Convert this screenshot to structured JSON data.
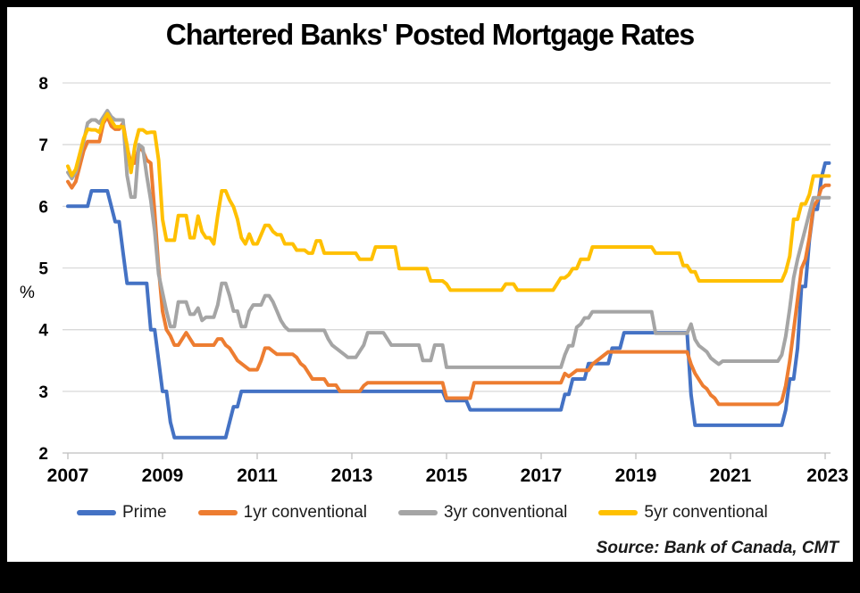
{
  "window_title": "Chartered Banks' Posted Mortgage Rates",
  "source_note": "Source: Bank of Canada, CMT",
  "chart_data": {
    "type": "line",
    "title": "Chartered Banks' Posted Mortgage Rates",
    "ylabel": "%",
    "frequency": "monthly",
    "x_start": "2007-01",
    "x_end": "2023-02",
    "x_tick_labels": [
      "2007",
      "2009",
      "2011",
      "2013",
      "2015",
      "2017",
      "2019",
      "2021",
      "2023"
    ],
    "x_tick_years": [
      2007,
      2009,
      2011,
      2013,
      2015,
      2017,
      2019,
      2021,
      2023
    ],
    "y_ticks": [
      2,
      3,
      4,
      5,
      6,
      7,
      8
    ],
    "ylim": [
      2,
      8
    ],
    "xlim_years": [
      2007,
      2023.25
    ],
    "grid": "horizontal",
    "legend_position": "bottom",
    "axis_color": "#bfbfbf",
    "grid_color": "#d9d9d9",
    "series": [
      {
        "name": "Prime",
        "color": "#4472C4",
        "values": [
          6,
          6,
          6,
          6,
          6,
          6,
          6.25,
          6.25,
          6.25,
          6.25,
          6.25,
          6,
          5.75,
          5.75,
          5.25,
          4.75,
          4.75,
          4.75,
          4.75,
          4.75,
          4.75,
          4,
          4,
          3.5,
          3,
          3,
          2.5,
          2.25,
          2.25,
          2.25,
          2.25,
          2.25,
          2.25,
          2.25,
          2.25,
          2.25,
          2.25,
          2.25,
          2.25,
          2.25,
          2.25,
          2.5,
          2.75,
          2.75,
          3,
          3,
          3,
          3,
          3,
          3,
          3,
          3,
          3,
          3,
          3,
          3,
          3,
          3,
          3,
          3,
          3,
          3,
          3,
          3,
          3,
          3,
          3,
          3,
          3,
          3,
          3,
          3,
          3,
          3,
          3,
          3,
          3,
          3,
          3,
          3,
          3,
          3,
          3,
          3,
          3,
          3,
          3,
          3,
          3,
          3,
          3,
          3,
          3,
          3,
          3,
          3,
          2.85,
          2.85,
          2.85,
          2.85,
          2.85,
          2.85,
          2.7,
          2.7,
          2.7,
          2.7,
          2.7,
          2.7,
          2.7,
          2.7,
          2.7,
          2.7,
          2.7,
          2.7,
          2.7,
          2.7,
          2.7,
          2.7,
          2.7,
          2.7,
          2.7,
          2.7,
          2.7,
          2.7,
          2.7,
          2.7,
          2.95,
          2.95,
          3.2,
          3.2,
          3.2,
          3.2,
          3.45,
          3.45,
          3.45,
          3.45,
          3.45,
          3.45,
          3.7,
          3.7,
          3.7,
          3.95,
          3.95,
          3.95,
          3.95,
          3.95,
          3.95,
          3.95,
          3.95,
          3.95,
          3.95,
          3.95,
          3.95,
          3.95,
          3.95,
          3.95,
          3.95,
          3.95,
          2.95,
          2.45,
          2.45,
          2.45,
          2.45,
          2.45,
          2.45,
          2.45,
          2.45,
          2.45,
          2.45,
          2.45,
          2.45,
          2.45,
          2.45,
          2.45,
          2.45,
          2.45,
          2.45,
          2.45,
          2.45,
          2.45,
          2.45,
          2.45,
          2.7,
          3.2,
          3.2,
          3.7,
          4.7,
          4.7,
          5.45,
          5.95,
          5.95,
          6.45,
          6.7,
          6.7
        ]
      },
      {
        "name": "1yr conventional",
        "color": "#ED7D31",
        "values": [
          6.4,
          6.3,
          6.4,
          6.65,
          6.9,
          7.05,
          7.05,
          7.05,
          7.05,
          7.35,
          7.45,
          7.3,
          7.25,
          7.25,
          7.35,
          6.95,
          6.7,
          6.7,
          6.95,
          6.9,
          6.75,
          6.7,
          5.9,
          5,
          4.3,
          4,
          3.9,
          3.75,
          3.75,
          3.85,
          3.95,
          3.85,
          3.75,
          3.75,
          3.75,
          3.75,
          3.75,
          3.75,
          3.85,
          3.85,
          3.75,
          3.7,
          3.6,
          3.5,
          3.45,
          3.4,
          3.35,
          3.35,
          3.35,
          3.5,
          3.7,
          3.7,
          3.65,
          3.6,
          3.6,
          3.6,
          3.6,
          3.6,
          3.55,
          3.45,
          3.4,
          3.3,
          3.2,
          3.2,
          3.2,
          3.2,
          3.1,
          3.1,
          3.1,
          3,
          3,
          3,
          3,
          3,
          3,
          3.09,
          3.14,
          3.14,
          3.14,
          3.14,
          3.14,
          3.14,
          3.14,
          3.14,
          3.14,
          3.14,
          3.14,
          3.14,
          3.14,
          3.14,
          3.14,
          3.14,
          3.14,
          3.14,
          3.14,
          3.14,
          2.89,
          2.89,
          2.89,
          2.89,
          2.89,
          2.89,
          2.89,
          3.14,
          3.14,
          3.14,
          3.14,
          3.14,
          3.14,
          3.14,
          3.14,
          3.14,
          3.14,
          3.14,
          3.14,
          3.14,
          3.14,
          3.14,
          3.14,
          3.14,
          3.14,
          3.14,
          3.14,
          3.14,
          3.14,
          3.14,
          3.29,
          3.24,
          3.29,
          3.34,
          3.34,
          3.34,
          3.34,
          3.44,
          3.49,
          3.54,
          3.59,
          3.64,
          3.64,
          3.64,
          3.64,
          3.64,
          3.64,
          3.64,
          3.64,
          3.64,
          3.64,
          3.64,
          3.64,
          3.64,
          3.64,
          3.64,
          3.64,
          3.64,
          3.64,
          3.64,
          3.64,
          3.64,
          3.44,
          3.29,
          3.19,
          3.09,
          3.04,
          2.94,
          2.89,
          2.79,
          2.79,
          2.79,
          2.79,
          2.79,
          2.79,
          2.79,
          2.79,
          2.79,
          2.79,
          2.79,
          2.79,
          2.79,
          2.79,
          2.79,
          2.79,
          2.84,
          3.09,
          3.49,
          3.99,
          4.49,
          4.99,
          5.14,
          5.49,
          5.99,
          6.09,
          6.29,
          6.34,
          6.34
        ]
      },
      {
        "name": "3yr conventional",
        "color": "#A5A5A5",
        "values": [
          6.55,
          6.45,
          6.55,
          6.8,
          7.05,
          7.35,
          7.4,
          7.4,
          7.35,
          7.45,
          7.55,
          7.45,
          7.4,
          7.4,
          7.4,
          6.5,
          6.15,
          6.15,
          7,
          6.95,
          6.5,
          6.1,
          5.6,
          4.9,
          4.6,
          4.3,
          4.05,
          4.05,
          4.45,
          4.45,
          4.45,
          4.25,
          4.25,
          4.35,
          4.15,
          4.2,
          4.2,
          4.2,
          4.4,
          4.75,
          4.75,
          4.55,
          4.3,
          4.3,
          4.05,
          4.05,
          4.3,
          4.4,
          4.4,
          4.4,
          4.55,
          4.55,
          4.45,
          4.3,
          4.15,
          4.05,
          3.99,
          3.99,
          3.99,
          3.99,
          3.99,
          3.99,
          3.99,
          3.99,
          3.99,
          3.99,
          3.85,
          3.75,
          3.7,
          3.65,
          3.6,
          3.55,
          3.55,
          3.55,
          3.65,
          3.75,
          3.95,
          3.95,
          3.95,
          3.95,
          3.95,
          3.85,
          3.75,
          3.75,
          3.75,
          3.75,
          3.75,
          3.75,
          3.75,
          3.75,
          3.5,
          3.5,
          3.5,
          3.75,
          3.75,
          3.75,
          3.39,
          3.39,
          3.39,
          3.39,
          3.39,
          3.39,
          3.39,
          3.39,
          3.39,
          3.39,
          3.39,
          3.39,
          3.39,
          3.39,
          3.39,
          3.39,
          3.39,
          3.39,
          3.39,
          3.39,
          3.39,
          3.39,
          3.39,
          3.39,
          3.39,
          3.39,
          3.39,
          3.39,
          3.39,
          3.39,
          3.59,
          3.74,
          3.74,
          4.04,
          4.09,
          4.19,
          4.19,
          4.29,
          4.29,
          4.29,
          4.29,
          4.29,
          4.29,
          4.29,
          4.29,
          4.29,
          4.29,
          4.29,
          4.29,
          4.29,
          4.29,
          4.29,
          4.29,
          3.94,
          3.94,
          3.94,
          3.94,
          3.94,
          3.94,
          3.94,
          3.94,
          3.94,
          4.09,
          3.84,
          3.74,
          3.69,
          3.64,
          3.54,
          3.49,
          3.44,
          3.49,
          3.49,
          3.49,
          3.49,
          3.49,
          3.49,
          3.49,
          3.49,
          3.49,
          3.49,
          3.49,
          3.49,
          3.49,
          3.49,
          3.49,
          3.59,
          3.89,
          4.34,
          4.84,
          5.14,
          5.39,
          5.64,
          5.89,
          6.14,
          6.14,
          6.14,
          6.14,
          6.14
        ]
      },
      {
        "name": "5yr conventional",
        "color": "#FFC000",
        "values": [
          6.65,
          6.5,
          6.6,
          6.85,
          7.1,
          7.25,
          7.24,
          7.24,
          7.2,
          7.39,
          7.5,
          7.39,
          7.29,
          7.29,
          7.29,
          6.99,
          6.55,
          6.99,
          7.24,
          7.24,
          7.19,
          7.2,
          7.2,
          6.75,
          5.79,
          5.45,
          5.45,
          5.45,
          5.85,
          5.85,
          5.85,
          5.49,
          5.49,
          5.84,
          5.59,
          5.49,
          5.49,
          5.39,
          5.85,
          6.25,
          6.25,
          6.1,
          5.99,
          5.79,
          5.49,
          5.39,
          5.55,
          5.39,
          5.39,
          5.54,
          5.69,
          5.69,
          5.59,
          5.54,
          5.54,
          5.39,
          5.39,
          5.39,
          5.29,
          5.29,
          5.29,
          5.24,
          5.24,
          5.44,
          5.44,
          5.24,
          5.24,
          5.24,
          5.24,
          5.24,
          5.24,
          5.24,
          5.24,
          5.24,
          5.14,
          5.14,
          5.14,
          5.14,
          5.34,
          5.34,
          5.34,
          5.34,
          5.34,
          5.34,
          4.99,
          4.99,
          4.99,
          4.99,
          4.99,
          4.99,
          4.99,
          4.99,
          4.79,
          4.79,
          4.79,
          4.79,
          4.74,
          4.64,
          4.64,
          4.64,
          4.64,
          4.64,
          4.64,
          4.64,
          4.64,
          4.64,
          4.64,
          4.64,
          4.64,
          4.64,
          4.64,
          4.74,
          4.74,
          4.74,
          4.64,
          4.64,
          4.64,
          4.64,
          4.64,
          4.64,
          4.64,
          4.64,
          4.64,
          4.64,
          4.74,
          4.84,
          4.84,
          4.89,
          4.99,
          4.99,
          5.14,
          5.14,
          5.14,
          5.34,
          5.34,
          5.34,
          5.34,
          5.34,
          5.34,
          5.34,
          5.34,
          5.34,
          5.34,
          5.34,
          5.34,
          5.34,
          5.34,
          5.34,
          5.34,
          5.24,
          5.24,
          5.24,
          5.24,
          5.24,
          5.24,
          5.24,
          5.04,
          5.04,
          4.94,
          4.94,
          4.79,
          4.79,
          4.79,
          4.79,
          4.79,
          4.79,
          4.79,
          4.79,
          4.79,
          4.79,
          4.79,
          4.79,
          4.79,
          4.79,
          4.79,
          4.79,
          4.79,
          4.79,
          4.79,
          4.79,
          4.79,
          4.79,
          4.94,
          5.19,
          5.79,
          5.79,
          6.04,
          6.04,
          6.19,
          6.49,
          6.49,
          6.49,
          6.49,
          6.49
        ]
      }
    ]
  }
}
